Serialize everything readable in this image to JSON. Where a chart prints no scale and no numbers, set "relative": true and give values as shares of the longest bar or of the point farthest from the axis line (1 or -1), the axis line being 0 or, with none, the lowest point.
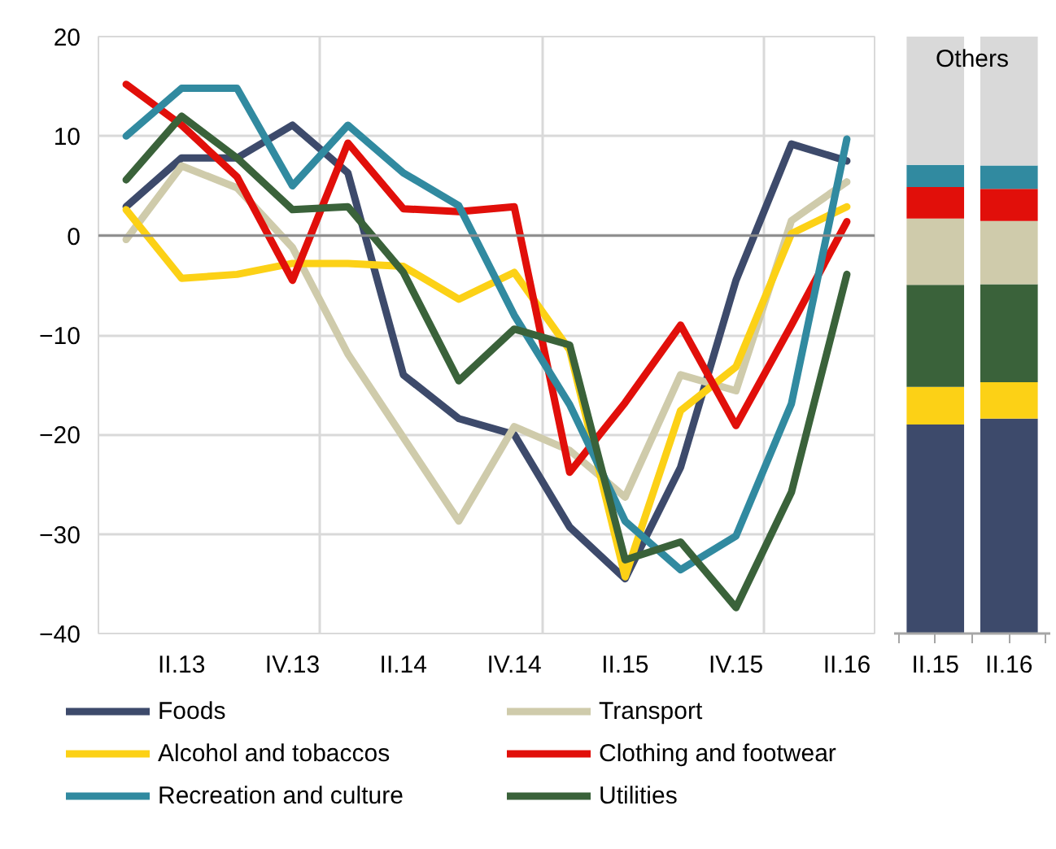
{
  "chart_data": [
    {
      "type": "line",
      "categories": [
        null,
        "II.13",
        null,
        "IV.13",
        null,
        "II.14",
        null,
        "IV.14",
        null,
        "II.15",
        null,
        "IV.15",
        null,
        "II.16"
      ],
      "ylim": [
        -40,
        20
      ],
      "yticks": [
        -40,
        -30,
        -20,
        -10,
        0,
        10,
        20
      ],
      "grid": true,
      "legend": "bottom",
      "line_style": "solid",
      "marker": "none",
      "series": [
        {
          "name": "Foods",
          "color": "#3d4a6b",
          "values": [
            2.9,
            7.8,
            7.8,
            11.1,
            6.3,
            -14.0,
            -18.4,
            -20.0,
            -29.3,
            -34.5,
            -23.3,
            -4.5,
            9.2,
            7.5
          ]
        },
        {
          "name": "Transport",
          "color": "#cfcbab",
          "values": [
            -0.4,
            7.0,
            4.8,
            -1.2,
            -11.9,
            -20.3,
            -28.7,
            -19.2,
            -21.6,
            -26.3,
            -14.0,
            -15.6,
            1.5,
            5.4
          ]
        },
        {
          "name": "Alcohol and tobaccos",
          "color": "#fcd116",
          "values": [
            2.6,
            -4.3,
            -3.9,
            -2.8,
            -2.8,
            -3.1,
            -6.4,
            -3.7,
            -11.5,
            -34.3,
            -17.6,
            -13.2,
            0.2,
            2.9
          ]
        },
        {
          "name": "Clothing and footwear",
          "color": "#e10f0a",
          "values": [
            15.2,
            11.1,
            5.9,
            -4.5,
            9.3,
            2.7,
            2.4,
            2.9,
            -23.8,
            -16.8,
            -9.0,
            -19.1,
            -9.0,
            1.4
          ]
        },
        {
          "name": "Recreation and culture",
          "color": "#318aa0",
          "values": [
            10.0,
            14.8,
            14.8,
            5.0,
            11.1,
            6.3,
            3.0,
            -8.0,
            -17.0,
            -28.7,
            -33.6,
            -30.2,
            -16.9,
            9.7
          ]
        },
        {
          "name": "Utilities",
          "color": "#3a623a",
          "values": [
            5.6,
            12.0,
            7.8,
            2.6,
            2.9,
            -3.7,
            -14.6,
            -9.4,
            -11.0,
            -32.6,
            -30.8,
            -37.4,
            -25.8,
            -3.9
          ]
        }
      ]
    },
    {
      "type": "bar",
      "stacked": true,
      "relative": true,
      "categories": [
        "II.15",
        "II.16"
      ],
      "series": [
        {
          "color": "#3d4a6b",
          "values": [
            0.35,
            0.36
          ]
        },
        {
          "color": "#fcd116",
          "values": [
            0.063,
            0.061
          ]
        },
        {
          "color": "#3a623a",
          "values": [
            0.171,
            0.164
          ]
        },
        {
          "color": "#cfcbab",
          "values": [
            0.111,
            0.106
          ]
        },
        {
          "color": "#e10f0a",
          "values": [
            0.053,
            0.054
          ]
        },
        {
          "color": "#318aa0",
          "values": [
            0.037,
            0.039
          ]
        },
        {
          "name": "Others",
          "color": "#d9d9d9",
          "values": [
            0.215,
            0.216
          ]
        }
      ]
    }
  ]
}
